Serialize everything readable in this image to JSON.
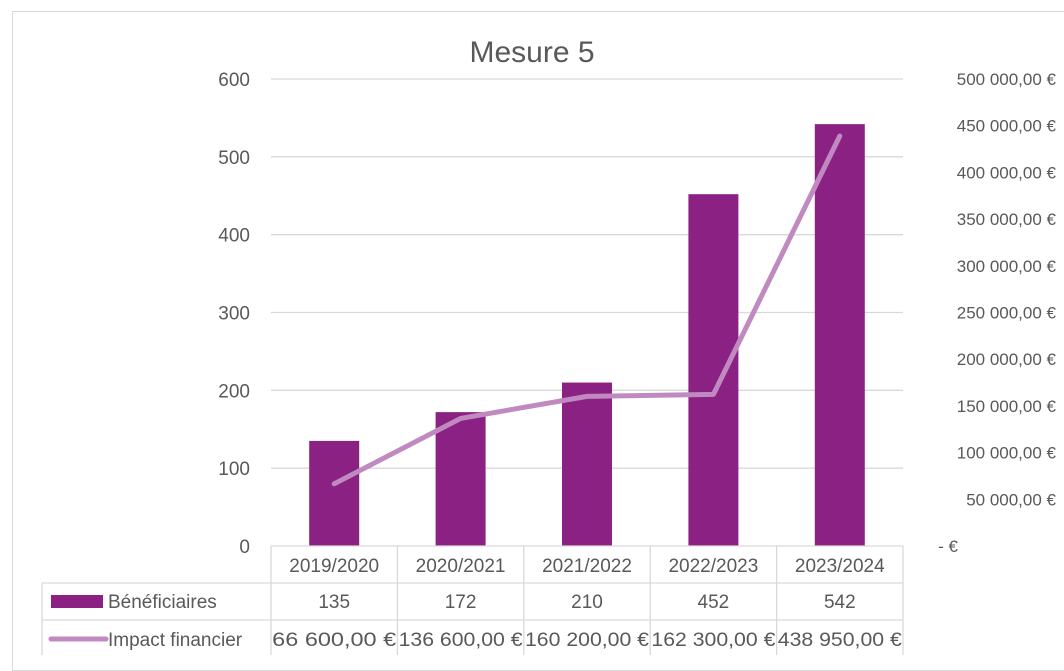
{
  "chart_data": {
    "type": "bar+line",
    "title": "Mesure 5",
    "categories": [
      "2019/2020",
      "2020/2021",
      "2021/2022",
      "2022/2023",
      "2023/2024"
    ],
    "series": [
      {
        "name": "Bénéficiaires",
        "type": "bar",
        "axis": "left",
        "color": "#8b2283",
        "values": [
          135,
          172,
          210,
          452,
          542
        ],
        "labels": [
          "135",
          "172",
          "210",
          "452",
          "542"
        ]
      },
      {
        "name": "Impact financier",
        "type": "line",
        "axis": "right",
        "color": "#c08ac0",
        "values": [
          66600,
          136600,
          160200,
          162300,
          438950
        ],
        "labels": [
          "66 600,00 €",
          "136 600,00 €",
          "160 200,00 €",
          "162 300,00 €",
          "438 950,00 €"
        ]
      }
    ],
    "y_left": {
      "ylim": [
        0,
        600
      ],
      "ticks": [
        0,
        100,
        200,
        300,
        400,
        500,
        600
      ],
      "tick_labels": [
        "0",
        "100",
        "200",
        "300",
        "400",
        "500",
        "600"
      ]
    },
    "y_right": {
      "ylim": [
        0,
        500000
      ],
      "ticks": [
        0,
        50000,
        100000,
        150000,
        200000,
        250000,
        300000,
        350000,
        400000,
        450000,
        500000
      ],
      "tick_labels": [
        "-  €",
        "50 000,00 €",
        "100 000,00 €",
        "150 000,00 €",
        "200 000,00 €",
        "250 000,00 €",
        "300 000,00 €",
        "350 000,00 €",
        "400 000,00 €",
        "450 000,00 €",
        "500 000,00 €"
      ]
    },
    "grid": true,
    "legend": "data-table"
  }
}
